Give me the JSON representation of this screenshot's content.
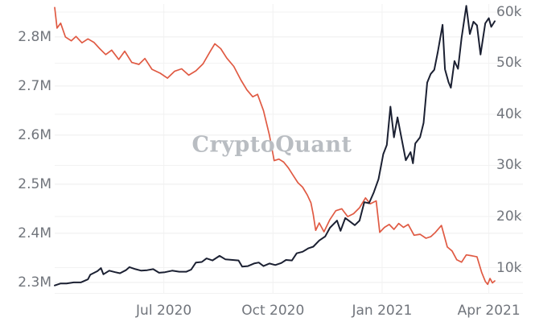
{
  "watermark": "CryptoQuant",
  "colors": {
    "background": "#ffffff",
    "red_line": "#e05a43",
    "navy_line": "#1b2032",
    "grid": "#ededed",
    "grid_minor": "#f2f2f2",
    "axis_label": "#71757c",
    "watermark": "#b9bdc2"
  },
  "chart_data": {
    "type": "line",
    "title": "",
    "legend": [],
    "grid": true,
    "x_range": [
      "2020-03-31",
      "2021-04-06"
    ],
    "x_ticks": [
      {
        "label": "Jul 2020",
        "date": "2020-07-01"
      },
      {
        "label": "Oct 2020",
        "date": "2020-10-01"
      },
      {
        "label": "Jan 2021",
        "date": "2021-01-01"
      },
      {
        "label": "Apr 2021",
        "date": "2021-04-01"
      }
    ],
    "left_axis": {
      "ticks": [
        {
          "label": "2.8M",
          "value": 2.8
        },
        {
          "label": "2.7M",
          "value": 2.7
        },
        {
          "label": "2.6M",
          "value": 2.6
        },
        {
          "label": "2.5M",
          "value": 2.5
        },
        {
          "label": "2.4M",
          "value": 2.4
        },
        {
          "label": "2.3M",
          "value": 2.3
        }
      ],
      "range": [
        2.285,
        2.867
      ],
      "unit": "M"
    },
    "right_axis": {
      "ticks": [
        {
          "label": "60k",
          "value": 60
        },
        {
          "label": "50k",
          "value": 50
        },
        {
          "label": "40k",
          "value": 40
        },
        {
          "label": "30k",
          "value": 30
        },
        {
          "label": "20k",
          "value": 20
        },
        {
          "label": "10k",
          "value": 10
        }
      ],
      "range": [
        5.67,
        61.57
      ],
      "unit": "k"
    },
    "series": [
      {
        "name": "red-line",
        "axis": "left",
        "color_key": "red_line",
        "width": 1.7,
        "points": [
          [
            "2020-03-31",
            2.86
          ],
          [
            "2020-04-02",
            2.818
          ],
          [
            "2020-04-05",
            2.828
          ],
          [
            "2020-04-09",
            2.8
          ],
          [
            "2020-04-14",
            2.792
          ],
          [
            "2020-04-18",
            2.801
          ],
          [
            "2020-04-23",
            2.788
          ],
          [
            "2020-04-28",
            2.796
          ],
          [
            "2020-05-03",
            2.789
          ],
          [
            "2020-05-08",
            2.776
          ],
          [
            "2020-05-13",
            2.764
          ],
          [
            "2020-05-18",
            2.773
          ],
          [
            "2020-05-24",
            2.754
          ],
          [
            "2020-05-29",
            2.771
          ],
          [
            "2020-06-04",
            2.748
          ],
          [
            "2020-06-10",
            2.744
          ],
          [
            "2020-06-15",
            2.756
          ],
          [
            "2020-06-21",
            2.734
          ],
          [
            "2020-06-28",
            2.726
          ],
          [
            "2020-07-04",
            2.716
          ],
          [
            "2020-07-10",
            2.73
          ],
          [
            "2020-07-16",
            2.735
          ],
          [
            "2020-07-22",
            2.722
          ],
          [
            "2020-07-28",
            2.731
          ],
          [
            "2020-08-03",
            2.745
          ],
          [
            "2020-08-09",
            2.77
          ],
          [
            "2020-08-13",
            2.786
          ],
          [
            "2020-08-18",
            2.776
          ],
          [
            "2020-08-23",
            2.757
          ],
          [
            "2020-08-29",
            2.74
          ],
          [
            "2020-09-04",
            2.712
          ],
          [
            "2020-09-09",
            2.692
          ],
          [
            "2020-09-14",
            2.678
          ],
          [
            "2020-09-18",
            2.683
          ],
          [
            "2020-09-23",
            2.65
          ],
          [
            "2020-09-28",
            2.6
          ],
          [
            "2020-10-02",
            2.548
          ],
          [
            "2020-10-06",
            2.551
          ],
          [
            "2020-10-10",
            2.545
          ],
          [
            "2020-10-14",
            2.533
          ],
          [
            "2020-10-18",
            2.518
          ],
          [
            "2020-10-22",
            2.503
          ],
          [
            "2020-10-26",
            2.494
          ],
          [
            "2020-10-30",
            2.478
          ],
          [
            "2020-11-02",
            2.462
          ],
          [
            "2020-11-04",
            2.438
          ],
          [
            "2020-11-06",
            2.406
          ],
          [
            "2020-11-09",
            2.421
          ],
          [
            "2020-11-13",
            2.403
          ],
          [
            "2020-11-18",
            2.428
          ],
          [
            "2020-11-23",
            2.446
          ],
          [
            "2020-11-28",
            2.45
          ],
          [
            "2020-12-03",
            2.434
          ],
          [
            "2020-12-08",
            2.44
          ],
          [
            "2020-12-13",
            2.452
          ],
          [
            "2020-12-18",
            2.472
          ],
          [
            "2020-12-22",
            2.46
          ],
          [
            "2020-12-27",
            2.466
          ],
          [
            "2020-12-30",
            2.402
          ],
          [
            "2021-01-03",
            2.412
          ],
          [
            "2021-01-07",
            2.418
          ],
          [
            "2021-01-11",
            2.408
          ],
          [
            "2021-01-15",
            2.42
          ],
          [
            "2021-01-19",
            2.412
          ],
          [
            "2021-01-23",
            2.418
          ],
          [
            "2021-01-28",
            2.396
          ],
          [
            "2021-02-02",
            2.398
          ],
          [
            "2021-02-07",
            2.39
          ],
          [
            "2021-02-11",
            2.393
          ],
          [
            "2021-02-15",
            2.402
          ],
          [
            "2021-02-20",
            2.416
          ],
          [
            "2021-02-25",
            2.372
          ],
          [
            "2021-03-01",
            2.364
          ],
          [
            "2021-03-05",
            2.346
          ],
          [
            "2021-03-09",
            2.341
          ],
          [
            "2021-03-13",
            2.356
          ],
          [
            "2021-03-18",
            2.354
          ],
          [
            "2021-03-22",
            2.352
          ],
          [
            "2021-03-26",
            2.32
          ],
          [
            "2021-03-29",
            2.302
          ],
          [
            "2021-03-31",
            2.296
          ],
          [
            "2021-04-02",
            2.308
          ],
          [
            "2021-04-04",
            2.299
          ],
          [
            "2021-04-06",
            2.303
          ]
        ]
      },
      {
        "name": "navy-line",
        "axis": "right",
        "color_key": "navy_line",
        "width": 2,
        "points": [
          [
            "2020-03-31",
            6.5
          ],
          [
            "2020-04-05",
            6.9
          ],
          [
            "2020-04-10",
            6.9
          ],
          [
            "2020-04-16",
            7.1
          ],
          [
            "2020-04-22",
            7.1
          ],
          [
            "2020-04-28",
            7.7
          ],
          [
            "2020-04-30",
            8.6
          ],
          [
            "2020-05-06",
            9.3
          ],
          [
            "2020-05-09",
            9.9
          ],
          [
            "2020-05-11",
            8.7
          ],
          [
            "2020-05-16",
            9.4
          ],
          [
            "2020-05-21",
            9.1
          ],
          [
            "2020-05-25",
            8.9
          ],
          [
            "2020-05-30",
            9.5
          ],
          [
            "2020-06-02",
            10.1
          ],
          [
            "2020-06-07",
            9.7
          ],
          [
            "2020-06-12",
            9.4
          ],
          [
            "2020-06-17",
            9.5
          ],
          [
            "2020-06-22",
            9.7
          ],
          [
            "2020-06-27",
            9.0
          ],
          [
            "2020-07-02",
            9.1
          ],
          [
            "2020-07-08",
            9.4
          ],
          [
            "2020-07-14",
            9.2
          ],
          [
            "2020-07-20",
            9.2
          ],
          [
            "2020-07-24",
            9.6
          ],
          [
            "2020-07-28",
            11.0
          ],
          [
            "2020-08-02",
            11.1
          ],
          [
            "2020-08-06",
            11.8
          ],
          [
            "2020-08-11",
            11.4
          ],
          [
            "2020-08-17",
            12.3
          ],
          [
            "2020-08-22",
            11.6
          ],
          [
            "2020-08-28",
            11.5
          ],
          [
            "2020-09-02",
            11.4
          ],
          [
            "2020-09-05",
            10.2
          ],
          [
            "2020-09-10",
            10.3
          ],
          [
            "2020-09-15",
            10.8
          ],
          [
            "2020-09-19",
            11.0
          ],
          [
            "2020-09-23",
            10.3
          ],
          [
            "2020-09-28",
            10.8
          ],
          [
            "2020-10-03",
            10.5
          ],
          [
            "2020-10-08",
            10.9
          ],
          [
            "2020-10-12",
            11.5
          ],
          [
            "2020-10-17",
            11.4
          ],
          [
            "2020-10-21",
            12.8
          ],
          [
            "2020-10-26",
            13.1
          ],
          [
            "2020-10-31",
            13.8
          ],
          [
            "2020-11-04",
            14.1
          ],
          [
            "2020-11-09",
            15.3
          ],
          [
            "2020-11-14",
            16.1
          ],
          [
            "2020-11-18",
            17.8
          ],
          [
            "2020-11-24",
            19.2
          ],
          [
            "2020-11-27",
            17.2
          ],
          [
            "2020-12-01",
            19.7
          ],
          [
            "2020-12-05",
            19.0
          ],
          [
            "2020-12-09",
            18.3
          ],
          [
            "2020-12-13",
            19.2
          ],
          [
            "2020-12-17",
            22.8
          ],
          [
            "2020-12-21",
            22.6
          ],
          [
            "2020-12-25",
            24.7
          ],
          [
            "2020-12-29",
            27.3
          ],
          [
            "2021-01-02",
            32.2
          ],
          [
            "2021-01-05",
            34.0
          ],
          [
            "2021-01-08",
            41.5
          ],
          [
            "2021-01-11",
            35.5
          ],
          [
            "2021-01-14",
            39.4
          ],
          [
            "2021-01-17",
            35.8
          ],
          [
            "2021-01-21",
            31.0
          ],
          [
            "2021-01-25",
            32.6
          ],
          [
            "2021-01-27",
            30.4
          ],
          [
            "2021-01-29",
            34.3
          ],
          [
            "2021-02-02",
            35.5
          ],
          [
            "2021-02-05",
            38.3
          ],
          [
            "2021-02-08",
            46.2
          ],
          [
            "2021-02-11",
            47.9
          ],
          [
            "2021-02-14",
            48.7
          ],
          [
            "2021-02-17",
            52.2
          ],
          [
            "2021-02-21",
            57.5
          ],
          [
            "2021-02-23",
            48.8
          ],
          [
            "2021-02-26",
            46.3
          ],
          [
            "2021-02-28",
            45.2
          ],
          [
            "2021-03-03",
            50.4
          ],
          [
            "2021-03-06",
            48.9
          ],
          [
            "2021-03-09",
            54.9
          ],
          [
            "2021-03-13",
            61.2
          ],
          [
            "2021-03-16",
            55.7
          ],
          [
            "2021-03-19",
            58.1
          ],
          [
            "2021-03-22",
            57.4
          ],
          [
            "2021-03-25",
            51.7
          ],
          [
            "2021-03-29",
            57.8
          ],
          [
            "2021-04-01",
            58.8
          ],
          [
            "2021-04-03",
            57.1
          ],
          [
            "2021-04-06",
            58.2
          ]
        ]
      }
    ]
  }
}
